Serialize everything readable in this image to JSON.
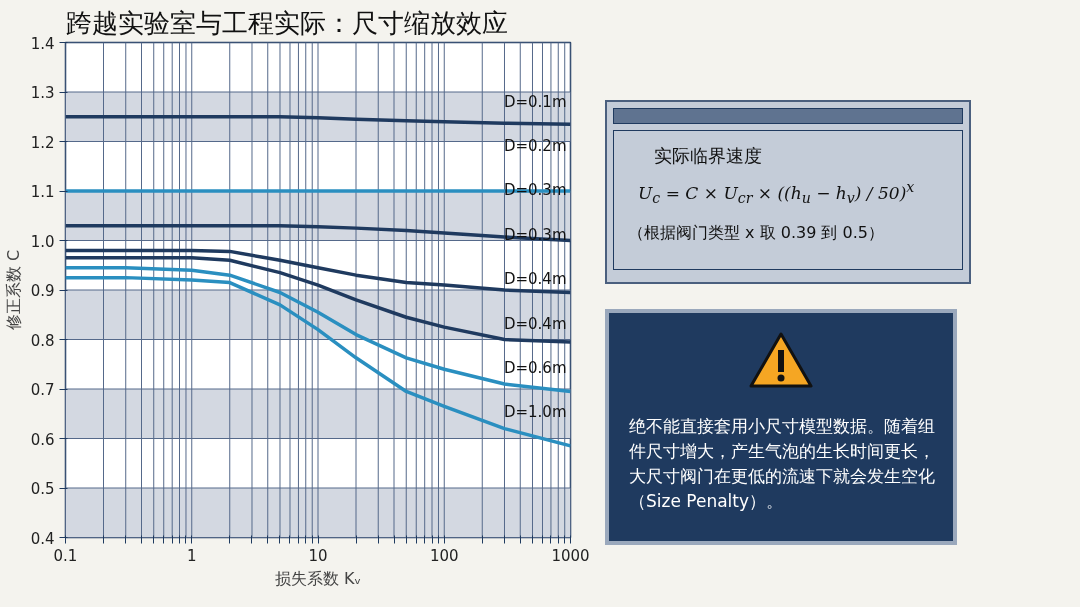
{
  "chart_data": [
    {
      "type": "line",
      "title": "跨越实验室与工程实际：尺寸缩放效应",
      "xlabel": "损失系数 Kᵥ",
      "ylabel": "修正系数 C",
      "log": "x",
      "x": [
        0.1,
        0.3,
        1,
        2,
        5,
        10,
        20,
        50,
        100,
        300,
        1000
      ],
      "series": [
        {
          "color": "#1f3a5f",
          "values": [
            1.25,
            1.25,
            1.25,
            1.25,
            1.25,
            1.248,
            1.245,
            1.242,
            1.24,
            1.237,
            1.235
          ]
        },
        {
          "color": "#2a8fc0",
          "values": [
            1.1,
            1.1,
            1.1,
            1.1,
            1.1,
            1.1,
            1.1,
            1.1,
            1.1,
            1.1,
            1.1
          ]
        },
        {
          "color": "#1f3a5f",
          "values": [
            1.03,
            1.03,
            1.03,
            1.03,
            1.03,
            1.028,
            1.025,
            1.02,
            1.015,
            1.007,
            1.0
          ]
        },
        {
          "color": "#1f3a5f",
          "values": [
            0.98,
            0.98,
            0.98,
            0.978,
            0.96,
            0.945,
            0.93,
            0.915,
            0.91,
            0.9,
            0.895
          ]
        },
        {
          "color": "#1f3a5f",
          "values": [
            0.965,
            0.965,
            0.965,
            0.96,
            0.935,
            0.91,
            0.88,
            0.845,
            0.825,
            0.8,
            0.795
          ]
        },
        {
          "color": "#2a8fc0",
          "values": [
            0.945,
            0.945,
            0.94,
            0.93,
            0.895,
            0.855,
            0.81,
            0.763,
            0.74,
            0.71,
            0.695
          ]
        },
        {
          "color": "#2a8fc0",
          "values": [
            0.925,
            0.925,
            0.92,
            0.915,
            0.87,
            0.82,
            0.763,
            0.695,
            0.665,
            0.62,
            0.585
          ]
        }
      ],
      "xlim": [
        0.1,
        1000
      ],
      "xticks": [
        0.1,
        {
          "value": 0.2,
          "label": null
        },
        {
          "value": 0.3,
          "label": null
        },
        {
          "value": 0.4,
          "label": null
        },
        {
          "value": 0.5,
          "label": null
        },
        {
          "value": 0.6,
          "label": null
        },
        {
          "value": 0.7,
          "label": null
        },
        {
          "value": 0.8,
          "label": null
        },
        {
          "value": 0.9,
          "label": null
        },
        1,
        {
          "value": 2,
          "label": null
        },
        {
          "value": 3,
          "label": null
        },
        {
          "value": 4,
          "label": null
        },
        {
          "value": 5,
          "label": null
        },
        {
          "value": 6,
          "label": null
        },
        {
          "value": 7,
          "label": null
        },
        {
          "value": 8,
          "label": null
        },
        {
          "value": 9,
          "label": null
        },
        10,
        {
          "value": 20,
          "label": null
        },
        {
          "value": 30,
          "label": null
        },
        {
          "value": 40,
          "label": null
        },
        {
          "value": 50,
          "label": null
        },
        {
          "value": 60,
          "label": null
        },
        {
          "value": 70,
          "label": null
        },
        {
          "value": 80,
          "label": null
        },
        {
          "value": 90,
          "label": null
        },
        100,
        {
          "value": 200,
          "label": null
        },
        {
          "value": 300,
          "label": null
        },
        {
          "value": 400,
          "label": null
        },
        {
          "value": 500,
          "label": null
        },
        {
          "value": 600,
          "label": null
        },
        {
          "value": 700,
          "label": null
        },
        {
          "value": 800,
          "label": null
        },
        {
          "value": 900,
          "label": null
        },
        1000
      ],
      "ylim": [
        0.4,
        1.4
      ],
      "yticks": [
        {
          "value": 0.4,
          "label": "0.4"
        },
        {
          "value": 0.5,
          "label": "0.5"
        },
        {
          "value": 0.6,
          "label": "0.6"
        },
        {
          "value": 0.7,
          "label": "0.7"
        },
        {
          "value": 0.8,
          "label": "0.8"
        },
        {
          "value": 0.9,
          "label": "0.9"
        },
        {
          "value": 1.0,
          "label": "1.0"
        },
        {
          "value": 1.1,
          "label": "1.1"
        },
        {
          "value": 1.2,
          "label": "1.2"
        },
        {
          "value": 1.3,
          "label": "1.3"
        },
        {
          "value": 1.4,
          "label": "1.4"
        }
      ],
      "grid": true,
      "bands": [
        {
          "axis": "y",
          "from": 0.4,
          "to": 0.5,
          "color": "#d3d8e1"
        },
        {
          "axis": "y",
          "from": 0.6,
          "to": 0.7,
          "color": "#d3d8e1"
        },
        {
          "axis": "y",
          "from": 0.8,
          "to": 0.9,
          "color": "#d3d8e1"
        },
        {
          "axis": "y",
          "from": 1.0,
          "to": 1.1,
          "color": "#d3d8e1"
        },
        {
          "axis": "y",
          "from": 1.2,
          "to": 1.3,
          "color": "#d3d8e1"
        }
      ],
      "annotations": [
        "D=0.1m",
        "D=0.2m",
        "D=0.3m",
        "D=0.3m",
        "D=0.4m",
        "D=0.4m",
        "D=0.6m",
        "D=1.0m"
      ]
    },
    {
      "type": "other",
      "annotations": [
        "实际临界速度",
        "U$_{c}$ = C × U$_{cr}$ × ((h$_{u}$ − h$_{v}$) / 50)$^{x}$",
        "（根据阀门类型 x 取 0.39 到 0.5）"
      ]
    },
    {
      "type": "other",
      "annotations": [
        "绝不能直接套用小尺寸模型数据。随着组件尺寸增大，产生气泡的生长时间更长，大尺寸阀门在更低的流速下就会发生空化（Size Penalty）。"
      ]
    }
  ]
}
